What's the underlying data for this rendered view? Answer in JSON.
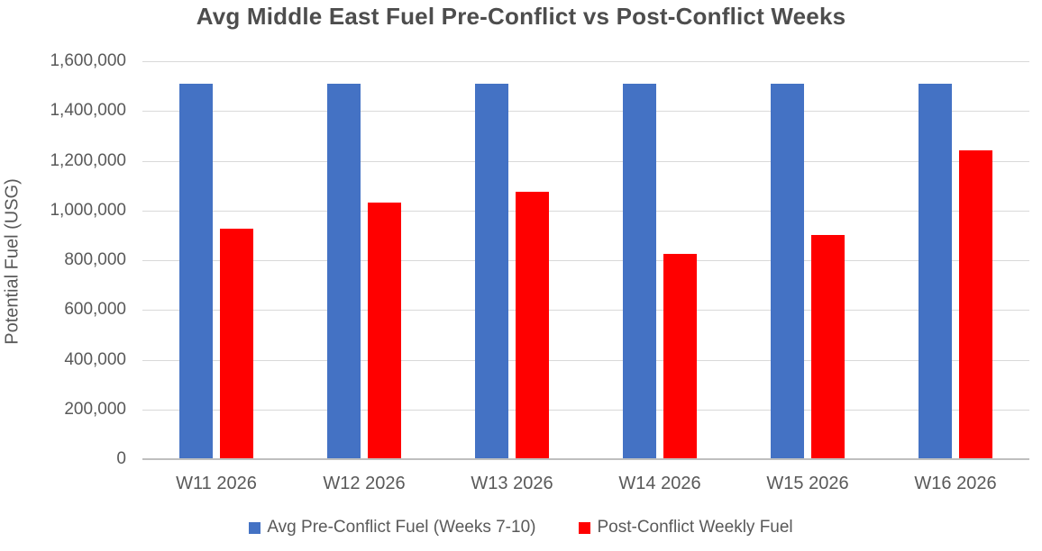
{
  "title": "Avg Middle East Fuel Pre-Conflict vs Post-Conflict Weeks",
  "chart_data": {
    "type": "bar",
    "title": "Avg Middle East Fuel Pre-Conflict vs Post-Conflict Weeks",
    "categories": [
      "W11 2026",
      "W12 2026",
      "W13 2026",
      "W14 2026",
      "W15 2026",
      "W16 2026"
    ],
    "series": [
      {
        "name": "Avg Pre-Conflict Fuel (Weeks 7-10)",
        "color": "#4472C4",
        "values": [
          1510000,
          1510000,
          1510000,
          1510000,
          1510000,
          1510000
        ]
      },
      {
        "name": "Post-Conflict Weekly Fuel",
        "color": "#FF0000",
        "values": [
          925000,
          1030000,
          1075000,
          825000,
          900000,
          1240000
        ]
      }
    ],
    "xlabel": "",
    "ylabel": "Potential Fuel (USG)",
    "ylim": [
      0,
      1600000
    ],
    "ytick_step": 200000,
    "ytick_labels_top_down": [
      "1,600,000",
      "1,400,000",
      "1,200,000",
      "1,000,000",
      "800,000",
      "600,000",
      "400,000",
      "200,000",
      "0"
    ],
    "grid": true,
    "legend_position": "bottom"
  },
  "colors": {
    "series_blue": "#4472C4",
    "series_red": "#FF0000",
    "gridline": "#d9d9d9",
    "axis_line": "#bfbfbf",
    "text": "#595959",
    "title_text": "#4d4d4d",
    "background": "#ffffff"
  }
}
